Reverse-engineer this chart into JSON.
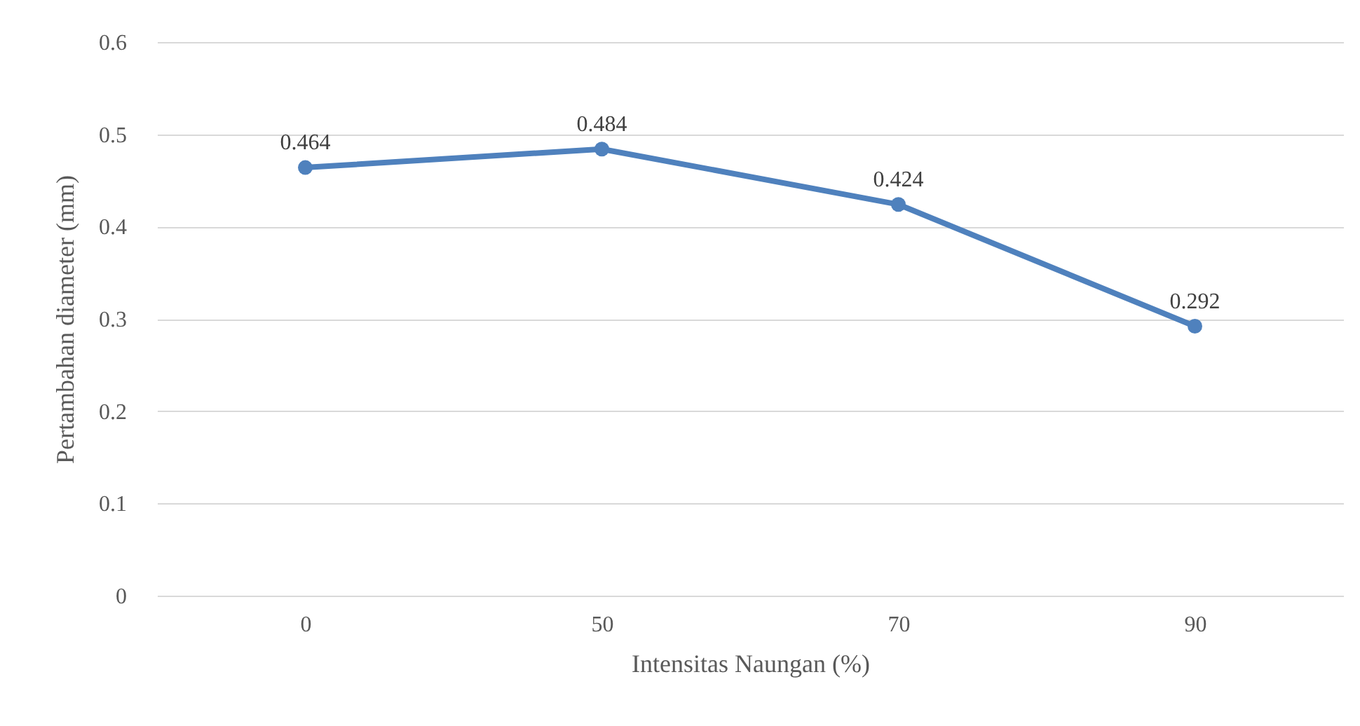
{
  "chart_data": {
    "type": "line",
    "xlabel": "Intensitas Naungan (%)",
    "ylabel": "Pertambahan diameter (mm)",
    "categories": [
      "0",
      "50",
      "70",
      "90"
    ],
    "series": [
      {
        "color": "#4f81bd",
        "values": [
          0.464,
          0.484,
          0.424,
          0.292
        ]
      }
    ],
    "ylim": [
      0,
      0.6
    ],
    "yticks": [
      0,
      0.1,
      0.2,
      0.3,
      0.4,
      0.5,
      0.6
    ],
    "grid": "y",
    "marker": "circle",
    "line_style": "solid",
    "data_labels": true,
    "legend": false
  }
}
